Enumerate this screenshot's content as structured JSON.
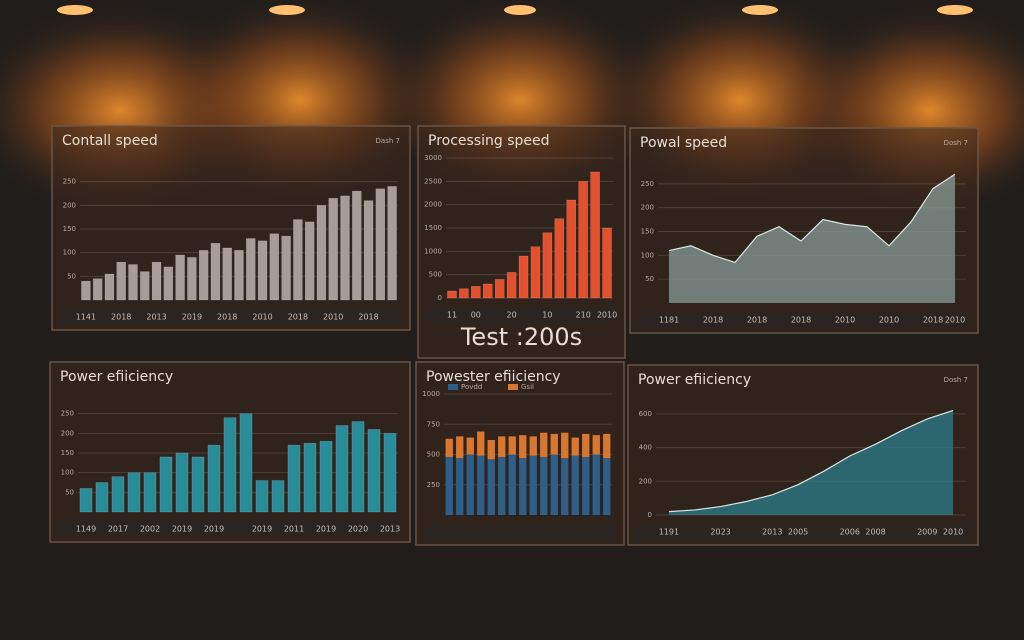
{
  "chart_data": [
    {
      "type": "bar",
      "title": "Contall speed",
      "subtitle": "Dash 7",
      "color": "#a89c98",
      "ylim": [
        0,
        300
      ],
      "yticks": [
        50,
        100,
        150,
        200,
        250
      ],
      "categories": [
        "1141",
        null,
        null,
        "2018",
        null,
        null,
        "2013",
        null,
        null,
        "2019",
        null,
        null,
        "2018",
        null,
        null,
        "2010",
        null,
        null,
        "2018",
        null,
        null,
        "2010",
        null,
        null,
        "2018",
        null,
        null
      ],
      "values": [
        40,
        45,
        55,
        80,
        75,
        60,
        80,
        70,
        95,
        90,
        105,
        120,
        110,
        105,
        130,
        125,
        140,
        135,
        170,
        165,
        200,
        215,
        220,
        230,
        210,
        235,
        240
      ]
    },
    {
      "type": "bar",
      "title": "Processing speed",
      "caption": "Test :200s",
      "color": "#e2512c",
      "ylim": [
        0,
        3000
      ],
      "yticks": [
        0,
        500,
        1000,
        1500,
        2000,
        2500,
        3000
      ],
      "categories": [
        "11",
        null,
        "00",
        null,
        null,
        "20",
        null,
        null,
        "10",
        null,
        null,
        "210",
        null,
        "2010"
      ],
      "values": [
        150,
        200,
        250,
        300,
        400,
        550,
        900,
        1100,
        1400,
        1700,
        2100,
        2500,
        2700,
        1500
      ]
    },
    {
      "type": "area",
      "title": "Powal speed",
      "subtitle": "Dosh 7",
      "color": "#8a9c98",
      "ylim": [
        0,
        300
      ],
      "yticks": [
        50,
        100,
        150,
        200,
        250
      ],
      "categories": [
        "1181",
        null,
        "2018",
        null,
        "2018",
        null,
        "2018",
        null,
        "2010",
        null,
        "2010",
        null,
        "2018",
        "2010"
      ],
      "values": [
        110,
        120,
        100,
        85,
        140,
        160,
        130,
        175,
        165,
        160,
        120,
        170,
        240,
        270
      ]
    },
    {
      "type": "bar",
      "title": "Power efiiciency",
      "color": "#2a8c9a",
      "ylim": [
        0,
        300
      ],
      "yticks": [
        50,
        100,
        150,
        200,
        250
      ],
      "categories": [
        "1149",
        null,
        "2017",
        null,
        "2002",
        null,
        "2019",
        null,
        "2019",
        null,
        null,
        "2019",
        null,
        "2011",
        null,
        "2019",
        null,
        "2020",
        null,
        "2013"
      ],
      "values": [
        60,
        75,
        90,
        100,
        100,
        140,
        150,
        140,
        170,
        240,
        250,
        80,
        80,
        170,
        175,
        180,
        220,
        230,
        210,
        200
      ]
    },
    {
      "type": "stacked_bar",
      "title": "Powester efiiciency",
      "ylim": [
        0,
        1000
      ],
      "yticks": [
        250,
        500,
        750,
        1000
      ],
      "categories": [
        null,
        null,
        null,
        null,
        null,
        null,
        null,
        null,
        null,
        null,
        null,
        null,
        null,
        null,
        null,
        null
      ],
      "series": [
        {
          "name": "Povdd",
          "color": "#2e5f8a",
          "values": [
            480,
            470,
            500,
            490,
            460,
            480,
            500,
            470,
            490,
            480,
            500,
            470,
            490,
            480,
            500,
            470
          ]
        },
        {
          "name": "Gsil",
          "color": "#d9772f",
          "values": [
            150,
            180,
            140,
            200,
            160,
            170,
            150,
            190,
            160,
            200,
            170,
            210,
            150,
            190,
            160,
            200
          ]
        }
      ]
    },
    {
      "type": "area",
      "title": "Power efiiciency",
      "subtitle": "Dosh 7",
      "color": "#2c7f8c",
      "ylim": [
        0,
        700
      ],
      "yticks": [
        0,
        200,
        400,
        600
      ],
      "categories": [
        "1191",
        null,
        "2023",
        null,
        "2013",
        "2005",
        null,
        "2006",
        "2008",
        null,
        "2009",
        "2010"
      ],
      "values": [
        20,
        30,
        50,
        80,
        120,
        180,
        260,
        350,
        420,
        500,
        570,
        620
      ]
    }
  ]
}
